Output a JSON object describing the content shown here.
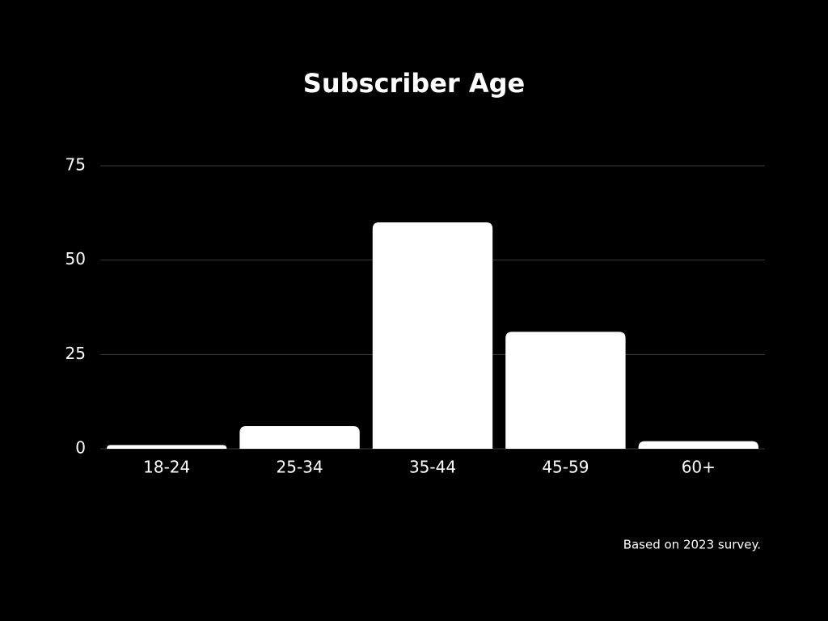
{
  "chart_data": {
    "type": "bar",
    "title": "Subscriber Age",
    "categories": [
      "18-24",
      "25-34",
      "35-44",
      "45-59",
      "60+"
    ],
    "values": [
      1,
      6,
      60,
      31,
      2
    ],
    "color": "#ffffff",
    "ylim": [
      0,
      75
    ],
    "yticks": [
      0,
      25,
      50,
      75
    ],
    "grid": true,
    "note": "Based on 2023 survey."
  }
}
